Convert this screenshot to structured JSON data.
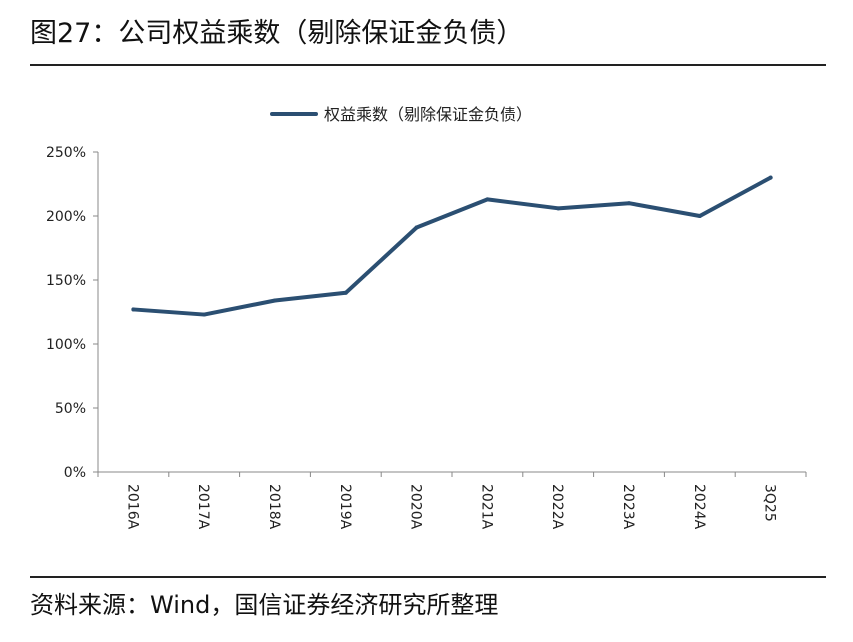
{
  "figure": {
    "title": "图27：公司权益乘数（剔除保证金负债）",
    "source": "资料来源：Wind，国信证券经济研究所整理"
  },
  "colors": {
    "series": "#2b4f72",
    "axis": "#888888",
    "rule": "#222222"
  },
  "chart_data": {
    "type": "line",
    "categories": [
      "2016A",
      "2017A",
      "2018A",
      "2019A",
      "2020A",
      "2021A",
      "2022A",
      "2023A",
      "2024A",
      "3Q25"
    ],
    "series": [
      {
        "name": "权益乘数（剔除保证金负债）",
        "values": [
          127,
          123,
          134,
          140,
          191,
          213,
          206,
          210,
          200,
          230
        ]
      }
    ],
    "y_ticks": [
      "0%",
      "50%",
      "100%",
      "150%",
      "200%",
      "250%"
    ],
    "ylim": [
      0,
      250
    ],
    "value_unit": "%",
    "grid": false,
    "legend_position": "top-center"
  }
}
